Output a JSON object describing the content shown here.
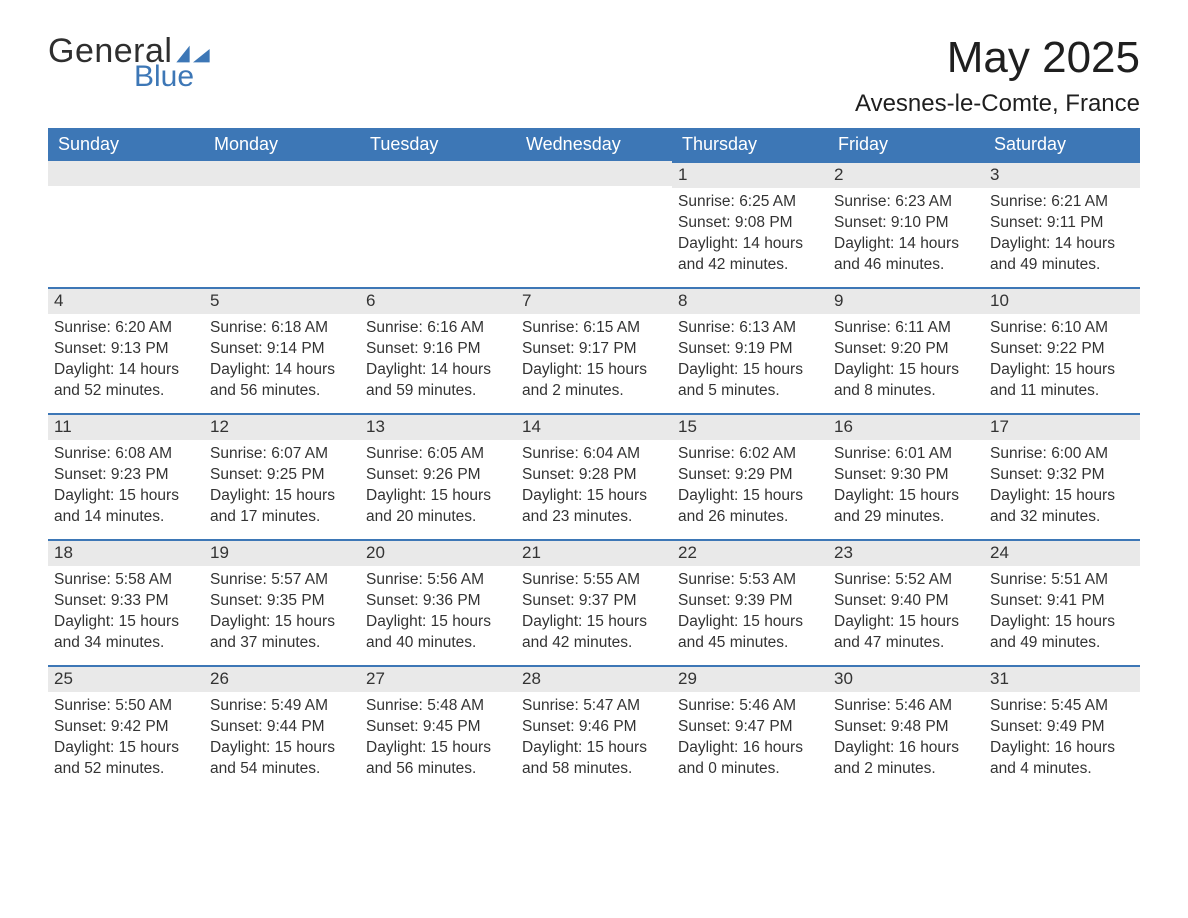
{
  "brand": {
    "general": "General",
    "blue": "Blue",
    "accent_color": "#3d77b6"
  },
  "title": "May 2025",
  "location": "Avesnes-le-Comte, France",
  "day_headers": [
    "Sunday",
    "Monday",
    "Tuesday",
    "Wednesday",
    "Thursday",
    "Friday",
    "Saturday"
  ],
  "colors": {
    "header_bg": "#3d77b6",
    "header_text": "#ffffff",
    "daynum_bg": "#e9e9e9",
    "daynum_border": "#3d77b6",
    "text": "#333333",
    "background": "#ffffff"
  },
  "weeks": [
    [
      null,
      null,
      null,
      null,
      {
        "n": "1",
        "sunrise": "6:25 AM",
        "sunset": "9:08 PM",
        "dlh": 14,
        "dlm": 42
      },
      {
        "n": "2",
        "sunrise": "6:23 AM",
        "sunset": "9:10 PM",
        "dlh": 14,
        "dlm": 46
      },
      {
        "n": "3",
        "sunrise": "6:21 AM",
        "sunset": "9:11 PM",
        "dlh": 14,
        "dlm": 49
      }
    ],
    [
      {
        "n": "4",
        "sunrise": "6:20 AM",
        "sunset": "9:13 PM",
        "dlh": 14,
        "dlm": 52
      },
      {
        "n": "5",
        "sunrise": "6:18 AM",
        "sunset": "9:14 PM",
        "dlh": 14,
        "dlm": 56
      },
      {
        "n": "6",
        "sunrise": "6:16 AM",
        "sunset": "9:16 PM",
        "dlh": 14,
        "dlm": 59
      },
      {
        "n": "7",
        "sunrise": "6:15 AM",
        "sunset": "9:17 PM",
        "dlh": 15,
        "dlm": 2
      },
      {
        "n": "8",
        "sunrise": "6:13 AM",
        "sunset": "9:19 PM",
        "dlh": 15,
        "dlm": 5
      },
      {
        "n": "9",
        "sunrise": "6:11 AM",
        "sunset": "9:20 PM",
        "dlh": 15,
        "dlm": 8
      },
      {
        "n": "10",
        "sunrise": "6:10 AM",
        "sunset": "9:22 PM",
        "dlh": 15,
        "dlm": 11
      }
    ],
    [
      {
        "n": "11",
        "sunrise": "6:08 AM",
        "sunset": "9:23 PM",
        "dlh": 15,
        "dlm": 14
      },
      {
        "n": "12",
        "sunrise": "6:07 AM",
        "sunset": "9:25 PM",
        "dlh": 15,
        "dlm": 17
      },
      {
        "n": "13",
        "sunrise": "6:05 AM",
        "sunset": "9:26 PM",
        "dlh": 15,
        "dlm": 20
      },
      {
        "n": "14",
        "sunrise": "6:04 AM",
        "sunset": "9:28 PM",
        "dlh": 15,
        "dlm": 23
      },
      {
        "n": "15",
        "sunrise": "6:02 AM",
        "sunset": "9:29 PM",
        "dlh": 15,
        "dlm": 26
      },
      {
        "n": "16",
        "sunrise": "6:01 AM",
        "sunset": "9:30 PM",
        "dlh": 15,
        "dlm": 29
      },
      {
        "n": "17",
        "sunrise": "6:00 AM",
        "sunset": "9:32 PM",
        "dlh": 15,
        "dlm": 32
      }
    ],
    [
      {
        "n": "18",
        "sunrise": "5:58 AM",
        "sunset": "9:33 PM",
        "dlh": 15,
        "dlm": 34
      },
      {
        "n": "19",
        "sunrise": "5:57 AM",
        "sunset": "9:35 PM",
        "dlh": 15,
        "dlm": 37
      },
      {
        "n": "20",
        "sunrise": "5:56 AM",
        "sunset": "9:36 PM",
        "dlh": 15,
        "dlm": 40
      },
      {
        "n": "21",
        "sunrise": "5:55 AM",
        "sunset": "9:37 PM",
        "dlh": 15,
        "dlm": 42
      },
      {
        "n": "22",
        "sunrise": "5:53 AM",
        "sunset": "9:39 PM",
        "dlh": 15,
        "dlm": 45
      },
      {
        "n": "23",
        "sunrise": "5:52 AM",
        "sunset": "9:40 PM",
        "dlh": 15,
        "dlm": 47
      },
      {
        "n": "24",
        "sunrise": "5:51 AM",
        "sunset": "9:41 PM",
        "dlh": 15,
        "dlm": 49
      }
    ],
    [
      {
        "n": "25",
        "sunrise": "5:50 AM",
        "sunset": "9:42 PM",
        "dlh": 15,
        "dlm": 52
      },
      {
        "n": "26",
        "sunrise": "5:49 AM",
        "sunset": "9:44 PM",
        "dlh": 15,
        "dlm": 54
      },
      {
        "n": "27",
        "sunrise": "5:48 AM",
        "sunset": "9:45 PM",
        "dlh": 15,
        "dlm": 56
      },
      {
        "n": "28",
        "sunrise": "5:47 AM",
        "sunset": "9:46 PM",
        "dlh": 15,
        "dlm": 58
      },
      {
        "n": "29",
        "sunrise": "5:46 AM",
        "sunset": "9:47 PM",
        "dlh": 16,
        "dlm": 0
      },
      {
        "n": "30",
        "sunrise": "5:46 AM",
        "sunset": "9:48 PM",
        "dlh": 16,
        "dlm": 2
      },
      {
        "n": "31",
        "sunrise": "5:45 AM",
        "sunset": "9:49 PM",
        "dlh": 16,
        "dlm": 4
      }
    ]
  ],
  "labels": {
    "sunrise": "Sunrise:",
    "sunset": "Sunset:",
    "daylight": "Daylight:",
    "hours_word": "hours",
    "and_word": "and",
    "minutes_word": "minutes."
  }
}
